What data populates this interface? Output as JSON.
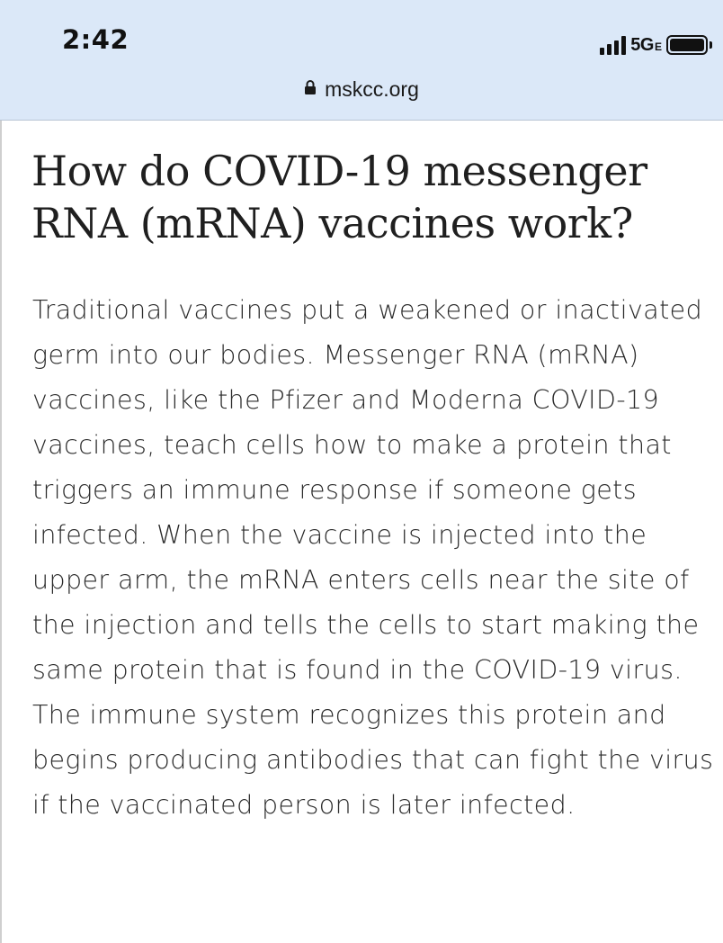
{
  "status_bar": {
    "time": "2:42",
    "network": "5G",
    "network_sub": "E",
    "icons": [
      "signal-icon",
      "battery-icon"
    ]
  },
  "address_bar": {
    "url": "mskcc.org",
    "icon": "lock-icon"
  },
  "article": {
    "headline": "How do COVID-19 messenger RNA (mRNA) vaccines work?",
    "body": "Traditional vaccines put a weakened or inactivated germ into our bodies. Messenger RNA (mRNA) vaccines, like the Pfizer and Moderna COVID-19 vaccines, teach cells how to make a protein that triggers an immune response if someone gets infected. When the vaccine is injected into the upper arm, the mRNA enters cells near the site of the injection and tells the cells to start making the same protein that is found in the COVID-19 virus. The immune system recognizes this protein and begins producing antibodies that can fight the virus if the vaccinated person is later infected."
  },
  "colors": {
    "top_bar_background": "#dbe8f8",
    "text": "#2b2b2b",
    "headline": "#1f1f1f"
  }
}
